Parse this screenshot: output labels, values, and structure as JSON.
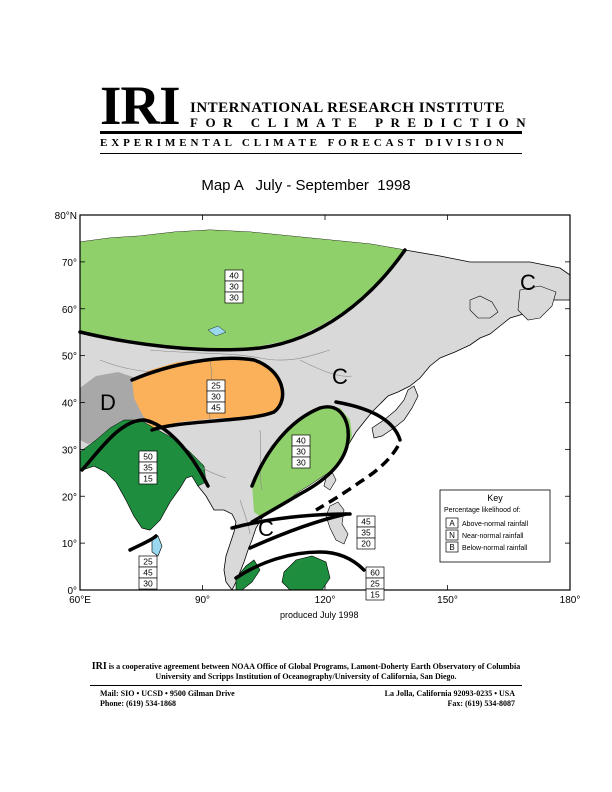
{
  "header": {
    "logo": "IRI",
    "line1": "INTERNATIONAL RESEARCH INSTITUTE",
    "line2": "FOR CLIMATE PREDICTION",
    "division": "EXPERIMENTAL CLIMATE FORECAST DIVISION"
  },
  "map": {
    "title": "Map A   July - September  1998",
    "produced": "produced July  1998",
    "lat_labels": [
      "80°N",
      "70°",
      "60°",
      "50°",
      "40°",
      "30°",
      "20°",
      "10°",
      "0°"
    ],
    "lon_labels": [
      "60°E",
      "90°",
      "120°",
      "150°",
      "180°"
    ],
    "region_letters": {
      "c_east": "C",
      "c_china": "C",
      "d_west": "D",
      "c_se_asia": "C"
    },
    "probabilities": {
      "north": [
        "40",
        "30",
        "30"
      ],
      "central": [
        "25",
        "30",
        "45"
      ],
      "india": [
        "50",
        "35",
        "15"
      ],
      "china": [
        "40",
        "30",
        "30"
      ],
      "sri_lanka": [
        "25",
        "45",
        "30"
      ],
      "philippines": [
        "45",
        "35",
        "20"
      ],
      "borneo": [
        "60",
        "25",
        "15"
      ]
    },
    "key": {
      "title": "Key",
      "subtitle": "Percentage likelihood of:",
      "items": [
        {
          "letter": "A",
          "label": "Above-normal rainfall"
        },
        {
          "letter": "N",
          "label": "Near-normal rainfall"
        },
        {
          "letter": "B",
          "label": "Below-normal rainfall"
        }
      ]
    },
    "colors": {
      "above_light": "#8fd06a",
      "above_dark": "#1e8e3e",
      "below": "#fbb15a",
      "climatology": "#d9d9d9",
      "dry": "#a8a8a8",
      "water": "#ffffff",
      "lake": "#9ad8f0"
    }
  },
  "footer": {
    "note_prefix": "IRI",
    "note": " is a cooperative agreement between NOAA Office of Global Programs, Lamont-Doherty Earth Observatory of Columbia University and Scripps Institution of Oceanography/University of California, San Diego.",
    "mail": "Mail: SIO • UCSD • 9500 Gilman Drive",
    "phone": "Phone: (619) 534-1868",
    "city": "La Jolla, California 92093-0235 • USA",
    "fax": "Fax: (619) 534-8087"
  }
}
